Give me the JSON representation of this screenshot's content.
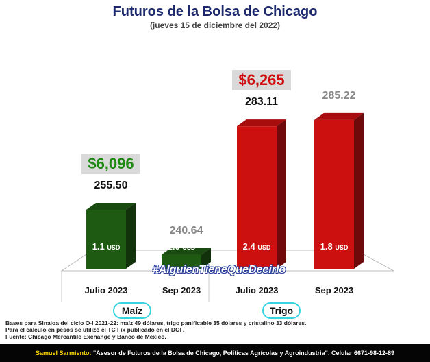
{
  "title": "Futuros de la Bolsa de Chicago",
  "subtitle": "(jueves 15 de diciembre del 2022)",
  "hashtag": "#AlguienTieneQueDecirlo",
  "notes": [
    "Bases para Sinaloa del ciclo O-I 2021-22: maíz 49 dólares, trigo panificable 35 dólares y cristalino 33 dólares.",
    "Para el cálculo en pesos se utilizó el TC Fix publicado en el DOF.",
    "Fuente: Chicago Mercantile Exchange y Banco de México."
  ],
  "footer": {
    "name": "Samuel Sarmiento:",
    "text": " \"Asesor de Futuros de la Bolsa de Chicago, Políticas Agrícolas y Agroindustria\". Celular 6671-98-12-89"
  },
  "groups": [
    "Maíz",
    "Trigo"
  ],
  "colors": {
    "maiz": "#1e5a12",
    "trigo": "#cc1010",
    "maiz_price": "#1f8a12",
    "trigo_price": "#d01010",
    "highlight_value": "#111111",
    "muted_value": "#888888"
  },
  "chart_data": {
    "type": "bar",
    "title": "Futuros de la Bolsa de Chicago",
    "subtitle": "(jueves 15 de diciembre del 2022)",
    "categories": [
      "Julio 2023",
      "Sep 2023",
      "Julio 2023",
      "Sep 2023"
    ],
    "groups": [
      {
        "name": "Maíz",
        "categories": [
          "Julio 2023",
          "Sep 2023"
        ]
      },
      {
        "name": "Trigo",
        "categories": [
          "Julio 2023",
          "Sep 2023"
        ]
      }
    ],
    "bars": [
      {
        "group": "Maíz",
        "category": "Julio 2023",
        "price": 255.5,
        "label": "255.50",
        "change_value": "1.1",
        "change_unit": "USD",
        "peso_price": "$6,096",
        "color": "#1e5a12"
      },
      {
        "group": "Maíz",
        "category": "Sep 2023",
        "price": 240.64,
        "label": "240.64",
        "change_value": "1.0",
        "change_unit": "USD",
        "peso_price": null,
        "color": "#1e5a12"
      },
      {
        "group": "Trigo",
        "category": "Julio 2023",
        "price": 283.11,
        "label": "283.11",
        "change_value": "2.4",
        "change_unit": "USD",
        "peso_price": "$6,265",
        "color": "#cc1010"
      },
      {
        "group": "Trigo",
        "category": "Sep 2023",
        "price": 285.22,
        "label": "285.22",
        "change_value": "1.8",
        "change_unit": "USD",
        "peso_price": null,
        "color": "#cc1010"
      }
    ],
    "ylim": [
      236,
      287
    ]
  }
}
